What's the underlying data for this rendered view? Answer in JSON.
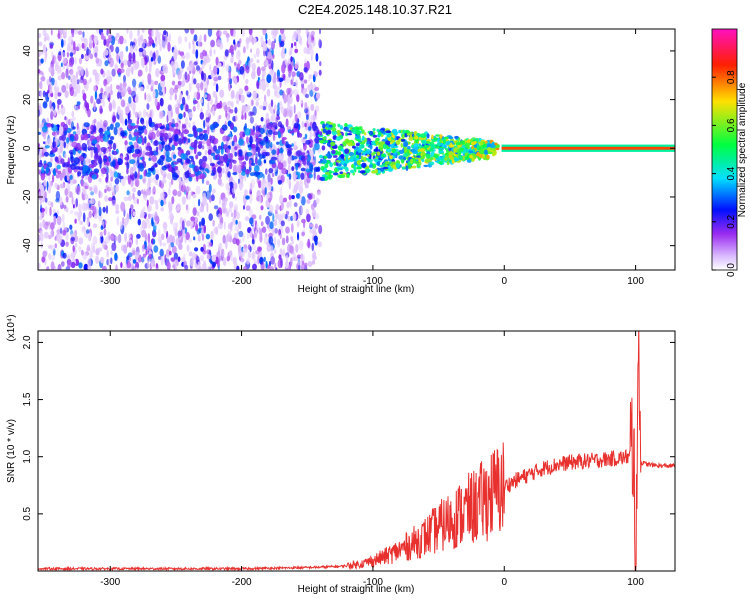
{
  "title": "C2E4.2025.148.10.37.R21",
  "chart_data": [
    {
      "type": "heatmap",
      "xlabel": "Height of straight line (km)",
      "ylabel": "Frequency (Hz)",
      "xlim": [
        -355,
        130
      ],
      "ylim": [
        -50,
        49
      ],
      "x_ticks": [
        -300,
        -200,
        -100,
        0,
        100
      ],
      "y_ticks": [
        -40,
        -20,
        0,
        20,
        40
      ],
      "x_tick_labels": [
        "-300",
        "-200",
        "-100",
        "0",
        "100"
      ],
      "y_tick_labels": [
        "-40",
        "-20",
        "0",
        "20",
        "40"
      ],
      "colorbar": {
        "label": "Normalized spectral amplitude",
        "range": [
          0,
          1
        ],
        "ticks": [
          0.0,
          0.2,
          0.4,
          0.6,
          0.8
        ],
        "tick_labels": [
          "0.0",
          "0.2",
          "0.4",
          "0.6",
          "0.8"
        ],
        "colors": [
          "#ffffff",
          "#9a2bf0",
          "#0010ff",
          "#00e0ff",
          "#00ff40",
          "#ffe000",
          "#ff2000",
          "#ff10c0"
        ]
      },
      "regions": [
        {
          "x_range": [
            -355,
            -140
          ],
          "freq_range": [
            -50,
            49
          ],
          "amplitude": 0.1,
          "description_colors": "sparse purple"
        },
        {
          "x_range": [
            -140,
            -10
          ],
          "freq_range": [
            -15,
            8
          ],
          "amplitude": 0.4
        },
        {
          "x_range": [
            0,
            130
          ],
          "freq_range": [
            -1,
            1
          ],
          "amplitude": 0.9
        }
      ]
    },
    {
      "type": "line",
      "xlabel": "Height of straight line (km)",
      "ylabel": "SNR (10 * v/v)",
      "y_scale_label": "(x10⁴)",
      "xlim": [
        -355,
        130
      ],
      "ylim": [
        0,
        2.1
      ],
      "x_ticks": [
        -300,
        -200,
        -100,
        0,
        100
      ],
      "y_ticks": [
        0.5,
        1.0,
        1.5,
        2.0
      ],
      "x_tick_labels": [
        "-300",
        "-200",
        "-100",
        "0",
        "100"
      ],
      "y_tick_labels": [
        "0.5",
        "1.0",
        "1.5",
        "2.0"
      ],
      "color": "#e8312e",
      "x": [
        -355,
        -300,
        -250,
        -200,
        -150,
        -125,
        -110,
        -100,
        -90,
        -80,
        -70,
        -60,
        -50,
        -40,
        -30,
        -20,
        -10,
        0,
        10,
        20,
        30,
        40,
        50,
        60,
        70,
        80,
        90,
        95,
        98,
        100,
        102,
        104,
        110,
        120,
        130
      ],
      "y": [
        0.02,
        0.02,
        0.02,
        0.02,
        0.03,
        0.04,
        0.06,
        0.09,
        0.13,
        0.18,
        0.24,
        0.3,
        0.38,
        0.45,
        0.52,
        0.58,
        0.67,
        0.74,
        0.8,
        0.85,
        0.9,
        0.93,
        0.95,
        0.96,
        0.97,
        0.98,
        0.99,
        1.0,
        1.2,
        0.05,
        2.1,
        0.95,
        0.93,
        0.92,
        0.92
      ]
    }
  ]
}
